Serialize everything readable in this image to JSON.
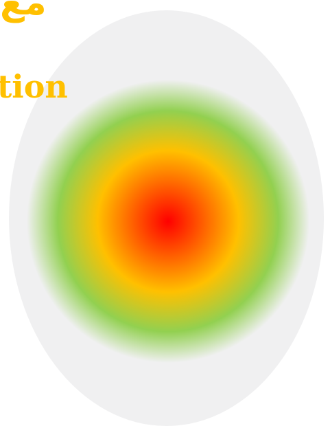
{
  "heading_arabic": "مع",
  "heading_latin": "tion",
  "colors": {
    "text": "#ffc000",
    "ellipse": "#f0f0f1",
    "center": "#ff0000",
    "mid": "#ffc000",
    "ring": "#92d050",
    "fade": "#f0f0f1"
  }
}
